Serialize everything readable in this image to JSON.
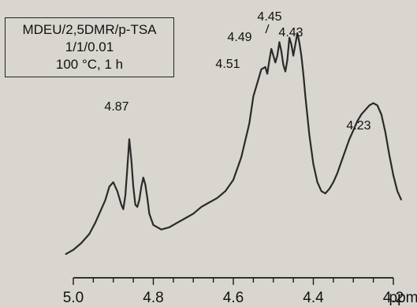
{
  "chart_data": {
    "type": "line",
    "title": "",
    "xlabel": "ppm",
    "ylabel": "",
    "xlim": [
      5.0,
      4.2
    ],
    "x_ticks": [
      "5.0",
      "4.8",
      "4.6",
      "4.4",
      "4.2"
    ],
    "x_unit": "ppm",
    "legend_lines": [
      "MDEU/2,5DMR/p-TSA",
      "1/1/0.01",
      "100 °C, 1 h"
    ],
    "peak_labels": [
      {
        "text": "4.87",
        "x": 4.87
      },
      {
        "text": "4.51",
        "x": 4.51
      },
      {
        "text": "4.49",
        "x": 4.49
      },
      {
        "text": "4.45",
        "x": 4.45
      },
      {
        "text": "4.43",
        "x": 4.43
      },
      {
        "text": "4.23",
        "x": 4.23
      }
    ],
    "series": [
      {
        "x": [
          5.02,
          5.0,
          4.98,
          4.96,
          4.945,
          4.93,
          4.92,
          4.91,
          4.9,
          4.89,
          4.88,
          4.875,
          4.87,
          4.865,
          4.86,
          4.855,
          4.85,
          4.845,
          4.84,
          4.835,
          4.83,
          4.825,
          4.82,
          4.815,
          4.81,
          4.8,
          4.78,
          4.76,
          4.74,
          4.72,
          4.7,
          4.68,
          4.66,
          4.64,
          4.62,
          4.6,
          4.58,
          4.56,
          4.55,
          4.54,
          4.53,
          4.52,
          4.515,
          4.51,
          4.505,
          4.5,
          4.495,
          4.49,
          4.485,
          4.48,
          4.475,
          4.47,
          4.465,
          4.46,
          4.455,
          4.45,
          4.445,
          4.44,
          4.435,
          4.43,
          4.425,
          4.42,
          4.41,
          4.4,
          4.39,
          4.38,
          4.37,
          4.36,
          4.35,
          4.34,
          4.33,
          4.32,
          4.31,
          4.3,
          4.29,
          4.28,
          4.27,
          4.26,
          4.25,
          4.24,
          4.23,
          4.22,
          4.21,
          4.2,
          4.19,
          4.18
        ],
        "y": [
          0.02,
          0.04,
          0.07,
          0.11,
          0.16,
          0.22,
          0.26,
          0.32,
          0.34,
          0.3,
          0.24,
          0.22,
          0.28,
          0.4,
          0.53,
          0.44,
          0.32,
          0.24,
          0.23,
          0.26,
          0.32,
          0.36,
          0.33,
          0.27,
          0.2,
          0.15,
          0.13,
          0.14,
          0.16,
          0.18,
          0.2,
          0.23,
          0.25,
          0.27,
          0.3,
          0.35,
          0.45,
          0.6,
          0.72,
          0.78,
          0.84,
          0.85,
          0.82,
          0.88,
          0.93,
          0.9,
          0.87,
          0.9,
          0.96,
          0.92,
          0.86,
          0.83,
          0.88,
          0.98,
          0.95,
          0.9,
          0.95,
          1.0,
          0.96,
          0.9,
          0.82,
          0.72,
          0.55,
          0.42,
          0.34,
          0.3,
          0.29,
          0.31,
          0.34,
          0.38,
          0.43,
          0.48,
          0.53,
          0.57,
          0.61,
          0.64,
          0.66,
          0.68,
          0.69,
          0.68,
          0.64,
          0.56,
          0.46,
          0.37,
          0.3,
          0.26
        ]
      }
    ],
    "grid": false
  }
}
